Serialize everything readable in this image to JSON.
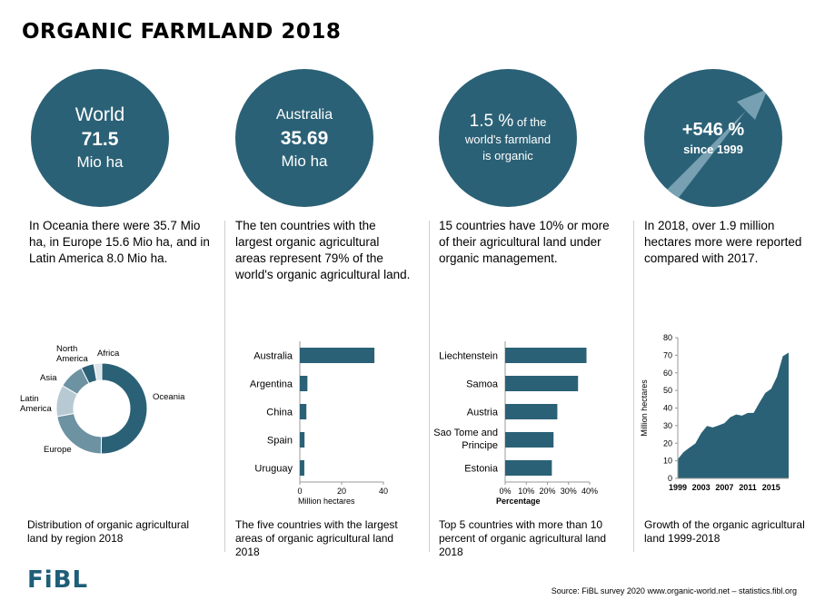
{
  "title": "ORGANIC FARMLAND 2018",
  "circles": [
    {
      "line1": "World",
      "line2": "71.5",
      "line3": "Mio ha"
    },
    {
      "line1": "Australia",
      "line2": "35.69",
      "line3": "Mio ha"
    },
    {
      "line1_big": "1.5 %",
      "line1_small": "of the",
      "line2": "world's farmland",
      "line3": "is organic"
    },
    {
      "line1": "+546 %",
      "line2": "since 1999"
    }
  ],
  "descriptions": [
    "In Oceania there were 35.7 Mio ha, in Europe 15.6 Mio ha, and in Latin America 8.0 Mio ha.",
    "The ten countries with the largest organic agricultural areas represent 79% of the world's organic agricultural land.",
    "15 countries have 10% or more of their agricultural land under organic management.",
    "In 2018, over 1.9 million hectares more were reported compared with 2017."
  ],
  "captions": [
    "Distribution of organic agricultural land by region 2018",
    "The five countries with the largest areas of organic agricultural land 2018",
    "Top 5 countries with more than 10 percent of organic agricultural land 2018",
    "Growth of the organic agricultural land 1999-2018"
  ],
  "footer": {
    "logo": "FiBL",
    "source": "Source: FiBL survey 2020  www.organic-world.net – statistics.fibl.org"
  },
  "colors": {
    "primary": "#2b6176",
    "mid": "#6d92a2",
    "light": "#b7cad3",
    "pale": "#dbe5ea"
  },
  "chart_data": [
    {
      "type": "pie",
      "variant": "donut",
      "categories": [
        "Oceania",
        "Europe",
        "Latin America",
        "Asia",
        "North America",
        "Africa"
      ],
      "values": [
        35.7,
        15.6,
        8.0,
        6.5,
        3.3,
        2.0
      ],
      "colors": [
        "#2b6176",
        "#6d92a2",
        "#b7cad3",
        "#6d92a2",
        "#2b6176",
        "#dbe5ea"
      ]
    },
    {
      "type": "bar",
      "orientation": "horizontal",
      "categories": [
        "Australia",
        "Argentina",
        "China",
        "Spain",
        "Uruguay"
      ],
      "values": [
        35.69,
        3.63,
        3.14,
        2.25,
        2.15
      ],
      "xlabel": "Million hectares",
      "xlim": [
        0,
        40
      ],
      "xticks": [
        "0",
        "20",
        "40"
      ]
    },
    {
      "type": "bar",
      "orientation": "horizontal",
      "categories": [
        "Liechtenstein",
        "Samoa",
        "Austria",
        "Sao Tome and Principe",
        "Estonia"
      ],
      "values": [
        38.5,
        34.5,
        24.7,
        22.9,
        22.1
      ],
      "xlabel": "Percentage",
      "xlim": [
        0,
        40
      ],
      "xticks": [
        "0%",
        "10%",
        "20%",
        "30%",
        "40%"
      ]
    },
    {
      "type": "area",
      "x": [
        1999,
        2000,
        2001,
        2002,
        2003,
        2004,
        2005,
        2006,
        2007,
        2008,
        2009,
        2010,
        2011,
        2012,
        2013,
        2014,
        2015,
        2016,
        2017,
        2018
      ],
      "values": [
        11,
        15,
        17.5,
        19.8,
        25.7,
        29.8,
        29,
        30.1,
        31.4,
        34.8,
        36.3,
        35.7,
        37.2,
        37.2,
        43.1,
        48.6,
        50.9,
        57.8,
        69.5,
        71.5
      ],
      "ylabel": "Million hectares",
      "ylim": [
        0,
        80
      ],
      "yticks": [
        "0",
        "10",
        "20",
        "30",
        "40",
        "50",
        "60",
        "70",
        "80"
      ],
      "xticks": [
        "1999",
        "2003",
        "2007",
        "2011",
        "2015"
      ]
    }
  ]
}
